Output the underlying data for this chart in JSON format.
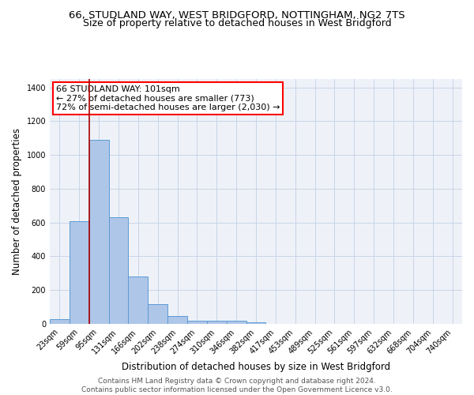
{
  "title_line1": "66, STUDLAND WAY, WEST BRIDGFORD, NOTTINGHAM, NG2 7TS",
  "title_line2": "Size of property relative to detached houses in West Bridgford",
  "xlabel": "Distribution of detached houses by size in West Bridgford",
  "ylabel": "Number of detached properties",
  "bar_labels": [
    "23sqm",
    "59sqm",
    "95sqm",
    "131sqm",
    "166sqm",
    "202sqm",
    "238sqm",
    "274sqm",
    "310sqm",
    "346sqm",
    "382sqm",
    "417sqm",
    "453sqm",
    "489sqm",
    "525sqm",
    "561sqm",
    "597sqm",
    "632sqm",
    "668sqm",
    "704sqm",
    "740sqm"
  ],
  "bar_heights": [
    30,
    610,
    1090,
    630,
    280,
    115,
    45,
    20,
    20,
    20,
    10,
    0,
    0,
    0,
    0,
    0,
    0,
    0,
    0,
    0,
    0
  ],
  "bar_color": "#aec6e8",
  "bar_edge_color": "#5b9bd5",
  "grid_color": "#c8d4e8",
  "bg_color": "#eef2f8",
  "vline_x": 1.5,
  "vline_color": "#aa0000",
  "annotation_text_line1": "66 STUDLAND WAY: 101sqm",
  "annotation_text_line2": "← 27% of detached houses are smaller (773)",
  "annotation_text_line3": "72% of semi-detached houses are larger (2,030) →",
  "ylim": [
    0,
    1450
  ],
  "yticks": [
    0,
    200,
    400,
    600,
    800,
    1000,
    1200,
    1400
  ],
  "footer_line1": "Contains HM Land Registry data © Crown copyright and database right 2024.",
  "footer_line2": "Contains public sector information licensed under the Open Government Licence v3.0.",
  "title_fontsize": 9.5,
  "subtitle_fontsize": 9,
  "axis_label_fontsize": 8.5,
  "ylabel_fontsize": 8.5,
  "tick_fontsize": 7,
  "annotation_fontsize": 8,
  "footer_fontsize": 6.5
}
